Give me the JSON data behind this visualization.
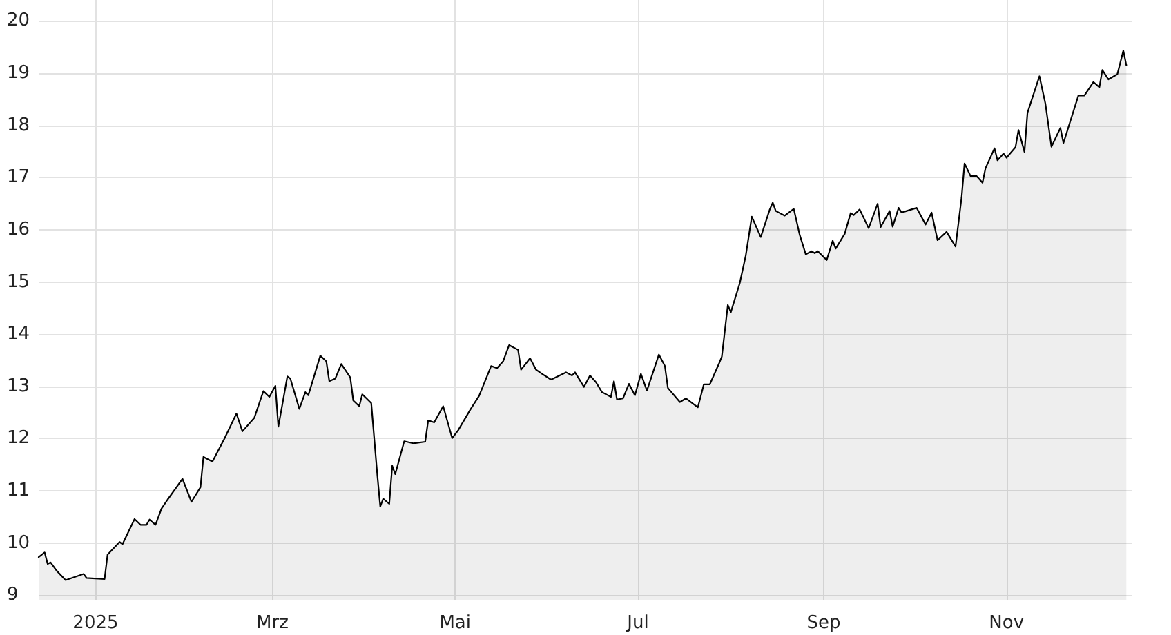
{
  "chart_data": {
    "type": "area",
    "color": "#000000",
    "x": [
      "2024-12-13",
      "2024-12-15",
      "2024-12-16",
      "2024-12-17",
      "2024-12-19",
      "2024-12-22",
      "2024-12-28",
      "2024-12-29",
      "2025-01-04",
      "2025-01-05",
      "2025-01-09",
      "2025-01-10",
      "2025-01-14",
      "2025-01-16",
      "2025-01-18",
      "2025-01-19",
      "2025-01-21",
      "2025-01-23",
      "2025-01-25",
      "2025-01-30",
      "2025-02-02",
      "2025-02-05",
      "2025-02-06",
      "2025-02-09",
      "2025-02-13",
      "2025-02-17",
      "2025-02-19",
      "2025-02-23",
      "2025-02-26",
      "2025-02-28",
      "2025-03-02",
      "2025-03-03",
      "2025-03-06",
      "2025-03-07",
      "2025-03-10",
      "2025-03-12",
      "2025-03-13",
      "2025-03-17",
      "2025-03-19",
      "2025-03-20",
      "2025-03-22",
      "2025-03-24",
      "2025-03-27",
      "2025-03-28",
      "2025-03-30",
      "2025-03-31",
      "2025-04-03",
      "2025-04-05",
      "2025-04-06",
      "2025-04-07",
      "2025-04-09",
      "2025-04-10",
      "2025-04-11",
      "2025-04-14",
      "2025-04-17",
      "2025-04-21",
      "2025-04-22",
      "2025-04-24",
      "2025-04-27",
      "2025-04-30",
      "2025-05-02",
      "2025-05-06",
      "2025-05-09",
      "2025-05-13",
      "2025-05-15",
      "2025-05-17",
      "2025-05-19",
      "2025-05-22",
      "2025-05-23",
      "2025-05-26",
      "2025-05-28",
      "2025-05-30",
      "2025-06-02",
      "2025-06-07",
      "2025-06-09",
      "2025-06-10",
      "2025-06-13",
      "2025-06-15",
      "2025-06-17",
      "2025-06-19",
      "2025-06-22",
      "2025-06-23",
      "2025-06-24",
      "2025-06-26",
      "2025-06-28",
      "2025-06-30",
      "2025-07-02",
      "2025-07-04",
      "2025-07-08",
      "2025-07-10",
      "2025-07-11",
      "2025-07-15",
      "2025-07-17",
      "2025-07-21",
      "2025-07-23",
      "2025-07-25",
      "2025-07-28",
      "2025-07-29",
      "2025-07-31",
      "2025-08-01",
      "2025-08-04",
      "2025-08-06",
      "2025-08-08",
      "2025-08-11",
      "2025-08-14",
      "2025-08-15",
      "2025-08-16",
      "2025-08-19",
      "2025-08-22",
      "2025-08-24",
      "2025-08-26",
      "2025-08-28",
      "2025-08-29",
      "2025-08-30",
      "2025-09-02",
      "2025-09-04",
      "2025-09-05",
      "2025-09-08",
      "2025-09-10",
      "2025-09-11",
      "2025-09-13",
      "2025-09-16",
      "2025-09-19",
      "2025-09-20",
      "2025-09-23",
      "2025-09-24",
      "2025-09-26",
      "2025-09-27",
      "2025-10-02",
      "2025-10-05",
      "2025-10-07",
      "2025-10-09",
      "2025-10-12",
      "2025-10-15",
      "2025-10-17",
      "2025-10-18",
      "2025-10-20",
      "2025-10-22",
      "2025-10-24",
      "2025-10-25",
      "2025-10-28",
      "2025-10-29",
      "2025-10-31",
      "2025-11-01",
      "2025-11-04",
      "2025-11-05",
      "2025-11-07",
      "2025-11-08",
      "2025-11-12",
      "2025-11-14",
      "2025-11-16",
      "2025-11-19",
      "2025-11-20",
      "2025-11-25",
      "2025-11-27",
      "2025-11-30",
      "2025-12-02",
      "2025-12-03",
      "2025-12-05",
      "2025-12-08",
      "2025-12-10",
      "2025-12-11"
    ],
    "values": [
      9.73,
      9.82,
      9.6,
      9.63,
      9.47,
      9.29,
      9.41,
      9.33,
      9.31,
      9.78,
      10.02,
      9.98,
      10.46,
      10.35,
      10.35,
      10.45,
      10.35,
      10.66,
      10.83,
      11.23,
      10.79,
      11.07,
      11.65,
      11.56,
      12.0,
      12.48,
      12.14,
      12.4,
      12.91,
      12.8,
      13.01,
      12.23,
      13.19,
      13.15,
      12.57,
      12.89,
      12.83,
      13.59,
      13.48,
      13.1,
      13.15,
      13.43,
      13.17,
      12.73,
      12.62,
      12.85,
      12.68,
      11.32,
      10.7,
      10.85,
      10.75,
      11.48,
      11.32,
      11.95,
      11.91,
      11.94,
      12.35,
      12.31,
      12.62,
      12.01,
      12.16,
      12.55,
      12.82,
      13.39,
      13.35,
      13.48,
      13.79,
      13.7,
      13.32,
      13.54,
      13.32,
      13.24,
      13.13,
      13.27,
      13.21,
      13.27,
      12.99,
      13.21,
      13.08,
      12.89,
      12.8,
      13.1,
      12.75,
      12.77,
      13.05,
      12.83,
      13.24,
      12.92,
      13.61,
      13.39,
      12.97,
      12.7,
      12.77,
      12.6,
      13.04,
      13.04,
      13.43,
      13.57,
      14.56,
      14.42,
      14.98,
      15.51,
      16.25,
      15.86,
      16.39,
      16.52,
      16.36,
      16.27,
      16.4,
      15.9,
      15.53,
      15.59,
      15.55,
      15.59,
      15.42,
      15.79,
      15.64,
      15.92,
      16.32,
      16.28,
      16.39,
      16.03,
      16.5,
      16.05,
      16.36,
      16.06,
      16.42,
      16.33,
      16.42,
      16.1,
      16.33,
      15.8,
      15.96,
      15.68,
      16.61,
      17.27,
      17.03,
      17.03,
      16.9,
      17.18,
      17.56,
      17.33,
      17.46,
      17.38,
      17.58,
      17.91,
      17.49,
      18.24,
      18.94,
      18.41,
      17.59,
      17.95,
      17.66,
      18.57,
      18.57,
      18.83,
      18.73,
      19.06,
      18.88,
      18.98,
      19.43,
      19.15
    ],
    "xlim": [
      "2024-12-13",
      "2025-12-13"
    ],
    "xticks": [
      {
        "value": "2025-01-01",
        "label": "2025"
      },
      {
        "value": "2025-03-01",
        "label": "Mrz"
      },
      {
        "value": "2025-05-01",
        "label": "Mai"
      },
      {
        "value": "2025-07-01",
        "label": "Jul"
      },
      {
        "value": "2025-09-01",
        "label": "Sep"
      },
      {
        "value": "2025-11-01",
        "label": "Nov"
      }
    ],
    "ylim": [
      8.9,
      20.4
    ],
    "yticks": [
      9,
      10,
      11,
      12,
      13,
      14,
      15,
      16,
      17,
      18,
      19,
      20
    ],
    "grid": true
  }
}
